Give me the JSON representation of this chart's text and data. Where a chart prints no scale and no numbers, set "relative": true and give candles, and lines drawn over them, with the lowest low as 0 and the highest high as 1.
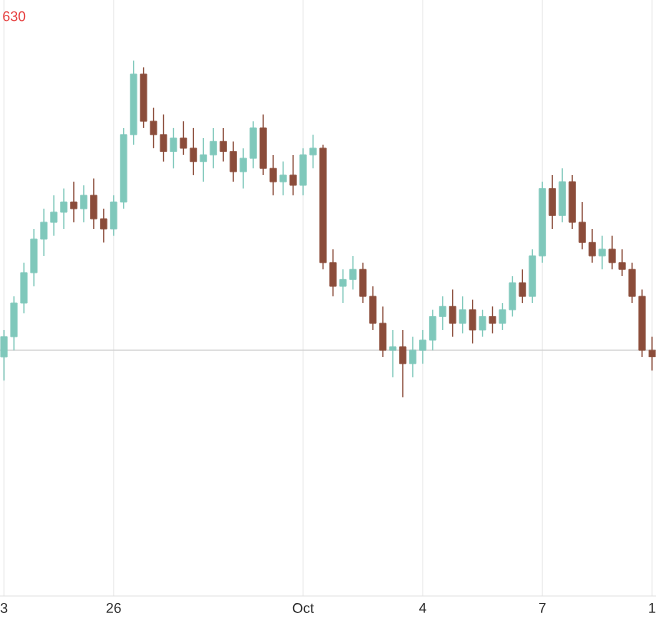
{
  "chart_data": {
    "type": "candlestick",
    "relative": true,
    "grid": "x",
    "annotations": [
      "630"
    ],
    "ref_lines": [
      {
        "axis": "y",
        "value": 0.14,
        "color": "#d0d0d0"
      }
    ],
    "categories": [
      "3",
      null,
      null,
      null,
      null,
      null,
      null,
      null,
      null,
      null,
      null,
      "26",
      null,
      null,
      null,
      null,
      null,
      null,
      null,
      null,
      null,
      null,
      null,
      null,
      null,
      null,
      null,
      null,
      null,
      null,
      "Oct",
      null,
      null,
      null,
      null,
      null,
      null,
      null,
      null,
      null,
      null,
      null,
      "4",
      null,
      null,
      null,
      null,
      null,
      null,
      null,
      null,
      null,
      null,
      null,
      "7",
      null,
      null,
      null,
      null,
      null,
      null,
      null,
      null,
      null,
      null,
      "1"
    ],
    "ohlc": [
      [
        0.12,
        0.2,
        0.05,
        0.18
      ],
      [
        0.18,
        0.3,
        0.14,
        0.28
      ],
      [
        0.28,
        0.4,
        0.25,
        0.37
      ],
      [
        0.37,
        0.5,
        0.33,
        0.47
      ],
      [
        0.47,
        0.56,
        0.42,
        0.52
      ],
      [
        0.52,
        0.6,
        0.48,
        0.55
      ],
      [
        0.55,
        0.62,
        0.5,
        0.58
      ],
      [
        0.58,
        0.64,
        0.52,
        0.56
      ],
      [
        0.56,
        0.63,
        0.52,
        0.6
      ],
      [
        0.6,
        0.65,
        0.5,
        0.53
      ],
      [
        0.53,
        0.56,
        0.46,
        0.5
      ],
      [
        0.5,
        0.6,
        0.48,
        0.58
      ],
      [
        0.58,
        0.8,
        0.56,
        0.78
      ],
      [
        0.78,
        1.0,
        0.75,
        0.96
      ],
      [
        0.96,
        0.98,
        0.8,
        0.82
      ],
      [
        0.82,
        0.86,
        0.74,
        0.78
      ],
      [
        0.78,
        0.84,
        0.7,
        0.73
      ],
      [
        0.73,
        0.8,
        0.68,
        0.77
      ],
      [
        0.77,
        0.82,
        0.72,
        0.74
      ],
      [
        0.74,
        0.8,
        0.66,
        0.7
      ],
      [
        0.7,
        0.77,
        0.64,
        0.72
      ],
      [
        0.72,
        0.8,
        0.68,
        0.76
      ],
      [
        0.76,
        0.8,
        0.7,
        0.73
      ],
      [
        0.73,
        0.76,
        0.64,
        0.67
      ],
      [
        0.67,
        0.74,
        0.62,
        0.71
      ],
      [
        0.71,
        0.82,
        0.68,
        0.8
      ],
      [
        0.8,
        0.84,
        0.66,
        0.68
      ],
      [
        0.68,
        0.72,
        0.6,
        0.64
      ],
      [
        0.64,
        0.7,
        0.6,
        0.66
      ],
      [
        0.66,
        0.72,
        0.6,
        0.63
      ],
      [
        0.63,
        0.74,
        0.6,
        0.72
      ],
      [
        0.72,
        0.78,
        0.68,
        0.74
      ],
      [
        0.74,
        0.75,
        0.38,
        0.4
      ],
      [
        0.4,
        0.44,
        0.3,
        0.33
      ],
      [
        0.33,
        0.38,
        0.28,
        0.35
      ],
      [
        0.35,
        0.42,
        0.32,
        0.38
      ],
      [
        0.38,
        0.4,
        0.28,
        0.3
      ],
      [
        0.3,
        0.33,
        0.2,
        0.22
      ],
      [
        0.22,
        0.27,
        0.12,
        0.14
      ],
      [
        0.14,
        0.2,
        0.06,
        0.15
      ],
      [
        0.15,
        0.2,
        0.0,
        0.1
      ],
      [
        0.1,
        0.18,
        0.06,
        0.14
      ],
      [
        0.14,
        0.2,
        0.1,
        0.17
      ],
      [
        0.17,
        0.26,
        0.14,
        0.24
      ],
      [
        0.24,
        0.3,
        0.2,
        0.27
      ],
      [
        0.27,
        0.32,
        0.18,
        0.22
      ],
      [
        0.22,
        0.3,
        0.19,
        0.26
      ],
      [
        0.26,
        0.29,
        0.16,
        0.2
      ],
      [
        0.2,
        0.26,
        0.18,
        0.24
      ],
      [
        0.24,
        0.27,
        0.19,
        0.22
      ],
      [
        0.22,
        0.28,
        0.2,
        0.26
      ],
      [
        0.26,
        0.36,
        0.24,
        0.34
      ],
      [
        0.34,
        0.38,
        0.28,
        0.3
      ],
      [
        0.3,
        0.44,
        0.28,
        0.42
      ],
      [
        0.42,
        0.64,
        0.4,
        0.62
      ],
      [
        0.62,
        0.66,
        0.5,
        0.54
      ],
      [
        0.54,
        0.68,
        0.52,
        0.64
      ],
      [
        0.64,
        0.66,
        0.5,
        0.52
      ],
      [
        0.52,
        0.58,
        0.44,
        0.46
      ],
      [
        0.46,
        0.5,
        0.4,
        0.42
      ],
      [
        0.42,
        0.48,
        0.38,
        0.44
      ],
      [
        0.44,
        0.48,
        0.38,
        0.4
      ],
      [
        0.4,
        0.44,
        0.36,
        0.38
      ],
      [
        0.38,
        0.4,
        0.28,
        0.3
      ],
      [
        0.3,
        0.32,
        0.12,
        0.14
      ],
      [
        0.14,
        0.18,
        0.08,
        0.12
      ]
    ],
    "colors": [
      "#7fc8bb",
      "#7fc8bb",
      "#7fc8bb",
      "#7fc8bb",
      "#7fc8bb",
      "#7fc8bb",
      "#7fc8bb",
      "#8b4c3a",
      "#7fc8bb",
      "#8b4c3a",
      "#8b4c3a",
      "#7fc8bb",
      "#7fc8bb",
      "#7fc8bb",
      "#8b4c3a",
      "#8b4c3a",
      "#8b4c3a",
      "#7fc8bb",
      "#8b4c3a",
      "#8b4c3a",
      "#7fc8bb",
      "#7fc8bb",
      "#8b4c3a",
      "#8b4c3a",
      "#7fc8bb",
      "#7fc8bb",
      "#8b4c3a",
      "#8b4c3a",
      "#7fc8bb",
      "#8b4c3a",
      "#7fc8bb",
      "#7fc8bb",
      "#8b4c3a",
      "#8b4c3a",
      "#7fc8bb",
      "#7fc8bb",
      "#8b4c3a",
      "#8b4c3a",
      "#8b4c3a",
      "#7fc8bb",
      "#8b4c3a",
      "#7fc8bb",
      "#7fc8bb",
      "#7fc8bb",
      "#7fc8bb",
      "#8b4c3a",
      "#7fc8bb",
      "#8b4c3a",
      "#7fc8bb",
      "#8b4c3a",
      "#7fc8bb",
      "#7fc8bb",
      "#8b4c3a",
      "#7fc8bb",
      "#7fc8bb",
      "#8b4c3a",
      "#7fc8bb",
      "#8b4c3a",
      "#8b4c3a",
      "#8b4c3a",
      "#7fc8bb",
      "#8b4c3a",
      "#8b4c3a",
      "#8b4c3a",
      "#8b4c3a",
      "#8b4c3a"
    ]
  }
}
